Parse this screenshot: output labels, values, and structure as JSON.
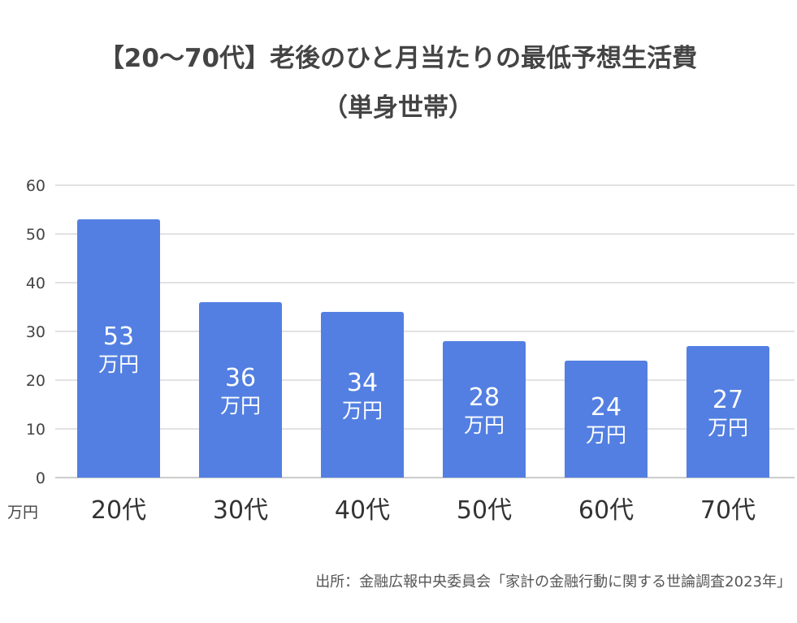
{
  "chart_data": {
    "type": "bar",
    "title": "【20〜70代】老後のひと月当たりの最低予想生活費",
    "subtitle": "（単身世帯）",
    "categories": [
      "20代",
      "30代",
      "40代",
      "50代",
      "60代",
      "70代"
    ],
    "values": [
      53,
      36,
      34,
      28,
      24,
      27
    ],
    "value_unit": "万円",
    "ylabel": "万円",
    "ylim": [
      0,
      60
    ],
    "yticks": [
      0,
      10,
      20,
      30,
      40,
      50,
      60
    ],
    "grid": true,
    "bar_color": "#537fe2",
    "source": "出所：金融広報中央委員会「家計の金融行動に関する世論調査2023年」"
  }
}
